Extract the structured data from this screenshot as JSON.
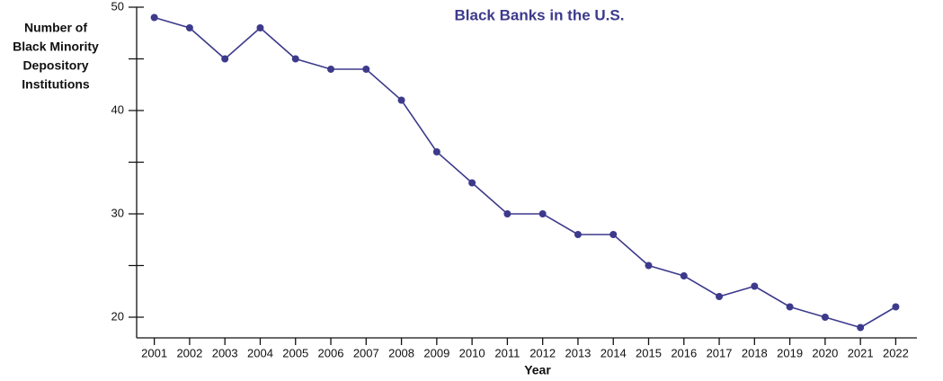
{
  "chart_data": {
    "type": "line",
    "title": "Black Banks in the U.S.",
    "ylabel": [
      "Number of",
      "Black Minority",
      "Depository",
      "Institutions"
    ],
    "xlabel": "Year",
    "x": [
      2001,
      2002,
      2003,
      2004,
      2005,
      2006,
      2007,
      2008,
      2009,
      2010,
      2011,
      2012,
      2013,
      2014,
      2015,
      2016,
      2017,
      2018,
      2019,
      2020,
      2021,
      2022
    ],
    "series": [
      {
        "color": "#3d3a8c",
        "values": [
          49,
          48,
          45,
          48,
          45,
          44,
          44,
          41,
          36,
          33,
          30,
          30,
          28,
          28,
          25,
          24,
          22,
          23,
          21,
          20,
          19,
          21
        ]
      }
    ],
    "xlim": [
      2000.5,
      2022.6
    ],
    "xticks": [
      2001,
      2002,
      2003,
      2004,
      2005,
      2006,
      2007,
      2008,
      2009,
      2010,
      2011,
      2012,
      2013,
      2014,
      2015,
      2016,
      2017,
      2018,
      2019,
      2020,
      2021,
      2022
    ],
    "ylim": [
      18,
      50
    ],
    "yticks": [
      20,
      30,
      40,
      50
    ],
    "yminorticks": [
      25,
      35,
      45
    ]
  }
}
